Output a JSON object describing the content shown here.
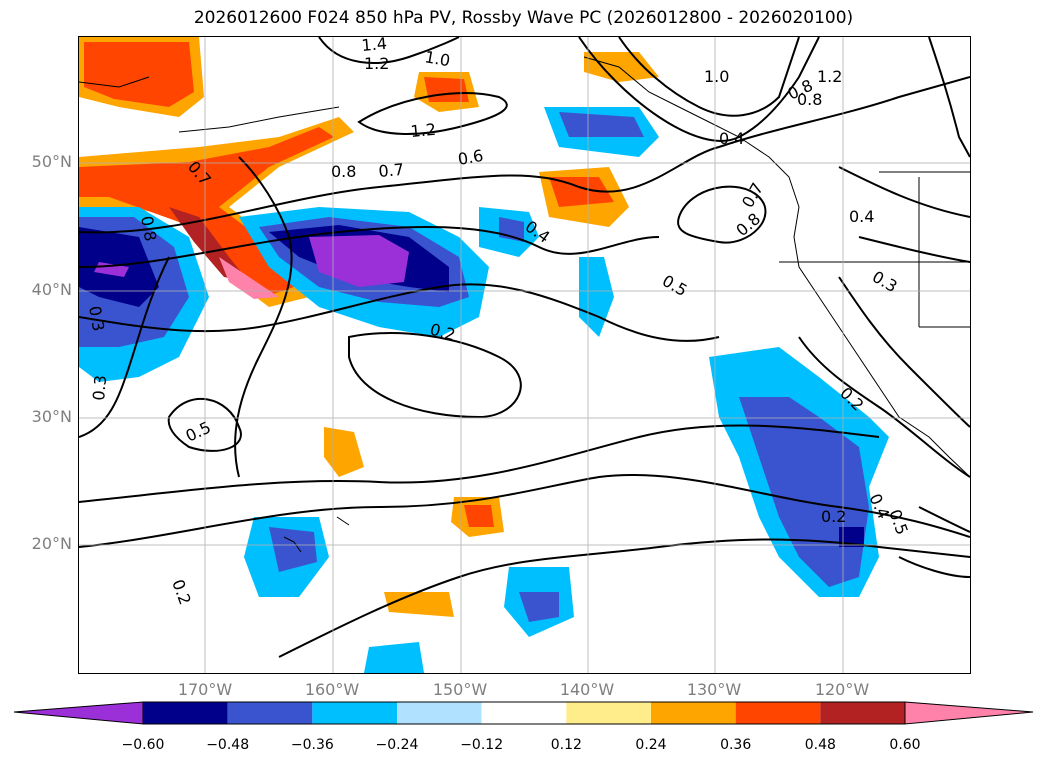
{
  "title": "2026012600 F024 850 hPa PV, Rossby Wave PC (2026012800 - 2026020100)",
  "map": {
    "lat_labels": [
      "50°N",
      "40°N",
      "30°N",
      "20°N"
    ],
    "lon_labels": [
      "170°W",
      "160°W",
      "150°W",
      "140°W",
      "130°W",
      "120°W"
    ],
    "contour_labels": [
      "1.4",
      "1.2",
      "1.0",
      "1.2",
      "1.0",
      "0.8",
      "0.4",
      "0.7",
      "1.2",
      "0.8",
      "0.6",
      "0.7",
      "0.8",
      "0.8",
      "0.4",
      "0.7",
      "0.8",
      "0.4",
      "0.3",
      "0.5",
      "0.2",
      "0.3",
      "0.5",
      "0.3",
      "0.2",
      "0.4",
      "0.5",
      "0.2",
      "0.2"
    ],
    "land_color": "#000000"
  },
  "colorbar": {
    "ticks": [
      "−0.60",
      "−0.48",
      "−0.36",
      "−0.24",
      "−0.12",
      "0.12",
      "0.24",
      "0.36",
      "0.48",
      "0.60"
    ],
    "colors": [
      "#9b30d8",
      "#00008b",
      "#3a54d0",
      "#00bfff",
      "#b0e2ff",
      "#ffffff",
      "#ffec8b",
      "#ffa500",
      "#ff4500",
      "#b22222",
      "#ff82ab",
      "#ff82ab"
    ],
    "extend_min_color": "#9b30d8",
    "extend_max_color": "#ff82ab"
  }
}
